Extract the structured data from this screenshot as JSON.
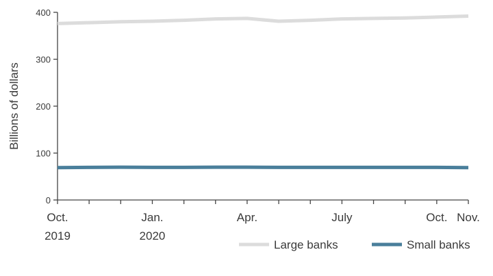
{
  "chart_data": {
    "type": "line",
    "title": "",
    "xlabel": "",
    "ylabel": "Billions of dollars",
    "ylim": [
      0,
      400
    ],
    "y_ticks": [
      0,
      100,
      200,
      300,
      400
    ],
    "grid": false,
    "legend_position": "bottom-right",
    "x_ticks": [
      {
        "month_index": 0,
        "line1": "Oct.",
        "line2": "2019"
      },
      {
        "month_index": 3,
        "line1": "Jan.",
        "line2": "2020"
      },
      {
        "month_index": 6,
        "line1": "Apr.",
        "line2": ""
      },
      {
        "month_index": 9,
        "line1": "July",
        "line2": ""
      },
      {
        "month_index": 12,
        "line1": "Oct.",
        "line2": ""
      },
      {
        "month_index": 13,
        "line1": "Nov.",
        "line2": ""
      }
    ],
    "x_range": [
      0,
      13
    ],
    "series": [
      {
        "name": "Large banks",
        "color": "#dcdcdc",
        "x": [
          0,
          1,
          2,
          3,
          4,
          5,
          6,
          7,
          8,
          9,
          10,
          11,
          12,
          13
        ],
        "values": [
          376,
          378,
          380,
          381,
          383,
          386,
          387,
          381,
          383,
          386,
          387,
          388,
          390,
          392
        ]
      },
      {
        "name": "Small banks",
        "color": "#4a7f9b",
        "x": [
          0,
          1,
          2,
          3,
          4,
          5,
          6,
          7,
          8,
          9,
          10,
          11,
          12,
          13
        ],
        "values": [
          69,
          69.5,
          70,
          69.5,
          69.5,
          70,
          70,
          69.5,
          69.5,
          69.5,
          69.5,
          69.5,
          69.5,
          69
        ]
      }
    ]
  }
}
